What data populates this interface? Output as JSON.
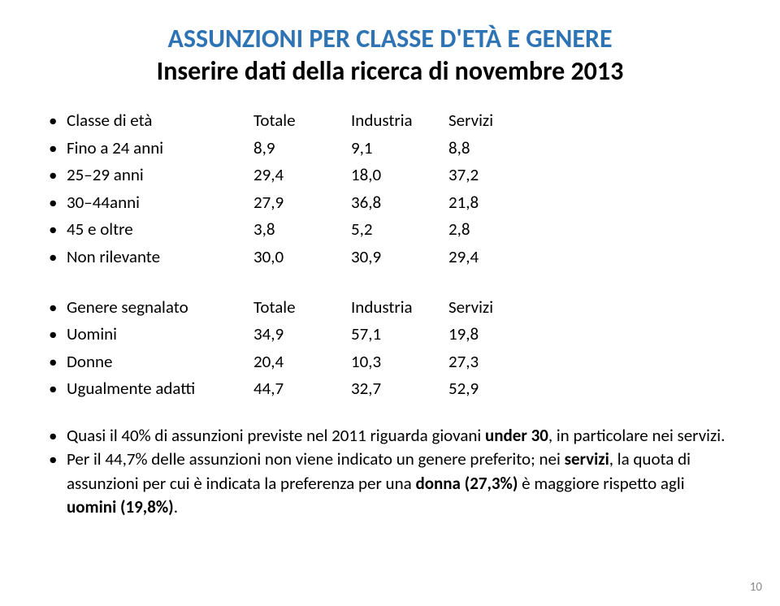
{
  "title": {
    "line1": "ASSUNZIONI PER CLASSE D'ETÀ E GENERE",
    "line2": "Inserire dati della ricerca di novembre 2013",
    "color1": "#2e74b5",
    "color2": "#000000"
  },
  "table1": {
    "header": {
      "label": "Classe di età",
      "c1": "Totale",
      "c2": "Industria",
      "c3": "Servizi"
    },
    "rows": [
      {
        "label": "Fino a 24 anni",
        "c1": "8,9",
        "c2": "9,1",
        "c3": "8,8"
      },
      {
        "label": "25–29 anni",
        "c1": "29,4",
        "c2": "18,0",
        "c3": "37,2"
      },
      {
        "label": "30–44anni",
        "c1": "27,9",
        "c2": "36,8",
        "c3": "21,8"
      },
      {
        "label": "45 e oltre",
        "c1": "3,8",
        "c2": "5,2",
        "c3": "2,8"
      },
      {
        "label": "Non rilevante",
        "c1": "30,0",
        "c2": "30,9",
        "c3": "29,4"
      }
    ]
  },
  "table2": {
    "header": {
      "label": "Genere segnalato",
      "c1": "Totale",
      "c2": "Industria",
      "c3": "Servizi"
    },
    "rows": [
      {
        "label": "Uomini",
        "c1": "34,9",
        "c2": "57,1",
        "c3": "19,8"
      },
      {
        "label": "Donne",
        "c1": "20,4",
        "c2": "10,3",
        "c3": "27,3"
      },
      {
        "label": "Ugualmente adatti",
        "c1": "44,7",
        "c2": "32,7",
        "c3": "52,9"
      }
    ]
  },
  "notes": {
    "n1_pre": "Quasi il 40% di assunzioni previste nel 2011 riguarda giovani ",
    "n1_bold": "under 30",
    "n1_post": ", in particolare nei servizi.",
    "n2_pre": "Per il 44,7% delle assunzioni non viene indicato un genere preferito; nei ",
    "n2_b1": "servizi",
    "n2_mid1": ", la quota di assunzioni per cui è indicata la preferenza per una ",
    "n2_b2": "donna (27,3%)",
    "n2_mid2": " è maggiore rispetto agli ",
    "n2_b3": "uomini (19,8%)",
    "n2_post": "."
  },
  "pagenum": "10"
}
